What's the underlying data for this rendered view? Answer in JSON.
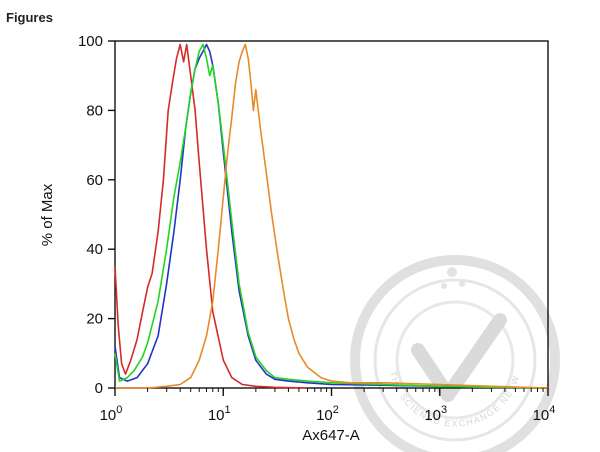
{
  "header": {
    "title": "Figures"
  },
  "watermark": {
    "text": "THE SCIENCE EXCHANGE NETWORK",
    "color": "#d9d9d9"
  },
  "chart_data": {
    "type": "line",
    "title": "",
    "xlabel": "Ax647-A",
    "ylabel": "% of Max",
    "x_scale": "log",
    "xlim": [
      1,
      10000
    ],
    "ylim": [
      0,
      100
    ],
    "grid": false,
    "x_ticks": [
      {
        "base": "10",
        "exp": "0",
        "value": 1
      },
      {
        "base": "10",
        "exp": "1",
        "value": 10
      },
      {
        "base": "10",
        "exp": "2",
        "value": 100
      },
      {
        "base": "10",
        "exp": "3",
        "value": 1000
      },
      {
        "base": "10",
        "exp": "4",
        "value": 10000
      }
    ],
    "y_ticks": [
      "0",
      "20",
      "40",
      "60",
      "80",
      "100"
    ],
    "series": [
      {
        "color": "#d42a2a",
        "points": [
          [
            1.0,
            35
          ],
          [
            1.07,
            18
          ],
          [
            1.15,
            7
          ],
          [
            1.25,
            4
          ],
          [
            1.4,
            8
          ],
          [
            1.6,
            14
          ],
          [
            1.8,
            22
          ],
          [
            2.0,
            29
          ],
          [
            2.2,
            33
          ],
          [
            2.5,
            45
          ],
          [
            2.8,
            60
          ],
          [
            3.1,
            80
          ],
          [
            3.4,
            88
          ],
          [
            3.7,
            95
          ],
          [
            4.0,
            99
          ],
          [
            4.3,
            94
          ],
          [
            4.6,
            99
          ],
          [
            5.0,
            90
          ],
          [
            5.5,
            80
          ],
          [
            6.0,
            65
          ],
          [
            7.0,
            40
          ],
          [
            8.0,
            22
          ],
          [
            10.0,
            8
          ],
          [
            12.0,
            3
          ],
          [
            15.0,
            1
          ],
          [
            20.0,
            0.5
          ],
          [
            30.0,
            0.2
          ],
          [
            60.0,
            0
          ]
        ]
      },
      {
        "color": "#2134c9",
        "points": [
          [
            1.0,
            12
          ],
          [
            1.1,
            3
          ],
          [
            1.3,
            2
          ],
          [
            1.6,
            3
          ],
          [
            2.0,
            7
          ],
          [
            2.5,
            15
          ],
          [
            3.0,
            30
          ],
          [
            3.5,
            45
          ],
          [
            4.0,
            60
          ],
          [
            4.5,
            75
          ],
          [
            5.0,
            85
          ],
          [
            5.5,
            92
          ],
          [
            6.0,
            95
          ],
          [
            6.5,
            97
          ],
          [
            7.0,
            99
          ],
          [
            7.5,
            97
          ],
          [
            8.0,
            93
          ],
          [
            9.0,
            82
          ],
          [
            10.0,
            68
          ],
          [
            12.0,
            45
          ],
          [
            14.0,
            28
          ],
          [
            17.0,
            15
          ],
          [
            20.0,
            8
          ],
          [
            25.0,
            4
          ],
          [
            30.0,
            2.5
          ],
          [
            40.0,
            2
          ],
          [
            60.0,
            1.5
          ],
          [
            100.0,
            1
          ],
          [
            300.0,
            0.8
          ],
          [
            1000.0,
            0.5
          ],
          [
            3000.0,
            0.2
          ],
          [
            10000.0,
            0
          ]
        ]
      },
      {
        "color": "#22d422",
        "points": [
          [
            1.0,
            10
          ],
          [
            1.1,
            2
          ],
          [
            1.3,
            3
          ],
          [
            1.5,
            5
          ],
          [
            1.8,
            9
          ],
          [
            2.0,
            13
          ],
          [
            2.5,
            25
          ],
          [
            3.0,
            40
          ],
          [
            3.5,
            55
          ],
          [
            4.0,
            65
          ],
          [
            4.5,
            75
          ],
          [
            5.0,
            85
          ],
          [
            5.5,
            92
          ],
          [
            6.0,
            97
          ],
          [
            6.5,
            99
          ],
          [
            7.0,
            95
          ],
          [
            7.5,
            90
          ],
          [
            8.0,
            93
          ],
          [
            9.0,
            82
          ],
          [
            10.0,
            70
          ],
          [
            12.0,
            48
          ],
          [
            14.0,
            30
          ],
          [
            17.0,
            16
          ],
          [
            20.0,
            9
          ],
          [
            25.0,
            5
          ],
          [
            30.0,
            3
          ],
          [
            40.0,
            2.5
          ],
          [
            60.0,
            2
          ],
          [
            100.0,
            1.5
          ],
          [
            300.0,
            1
          ],
          [
            1000.0,
            0.5
          ],
          [
            3000.0,
            0.2
          ],
          [
            10000.0,
            0
          ]
        ]
      },
      {
        "color": "#e8892a",
        "points": [
          [
            1.0,
            0
          ],
          [
            2.0,
            0
          ],
          [
            3.0,
            0.5
          ],
          [
            4.0,
            1
          ],
          [
            5.0,
            3
          ],
          [
            6.0,
            8
          ],
          [
            7.0,
            15
          ],
          [
            8.0,
            25
          ],
          [
            9.0,
            40
          ],
          [
            10.0,
            55
          ],
          [
            11.0,
            68
          ],
          [
            12.0,
            78
          ],
          [
            13.0,
            88
          ],
          [
            14.0,
            94
          ],
          [
            15.0,
            97
          ],
          [
            16.0,
            99
          ],
          [
            17.0,
            95
          ],
          [
            18.0,
            88
          ],
          [
            19.0,
            80
          ],
          [
            20.0,
            86
          ],
          [
            22.0,
            75
          ],
          [
            25.0,
            62
          ],
          [
            28.0,
            50
          ],
          [
            32.0,
            38
          ],
          [
            36.0,
            28
          ],
          [
            40.0,
            20
          ],
          [
            45.0,
            14
          ],
          [
            50.0,
            10
          ],
          [
            60.0,
            6
          ],
          [
            80.0,
            3
          ],
          [
            100.0,
            2
          ],
          [
            150.0,
            1.5
          ],
          [
            300.0,
            1.5
          ],
          [
            1000.0,
            1
          ],
          [
            3000.0,
            0.5
          ],
          [
            10000.0,
            0
          ]
        ]
      }
    ]
  }
}
